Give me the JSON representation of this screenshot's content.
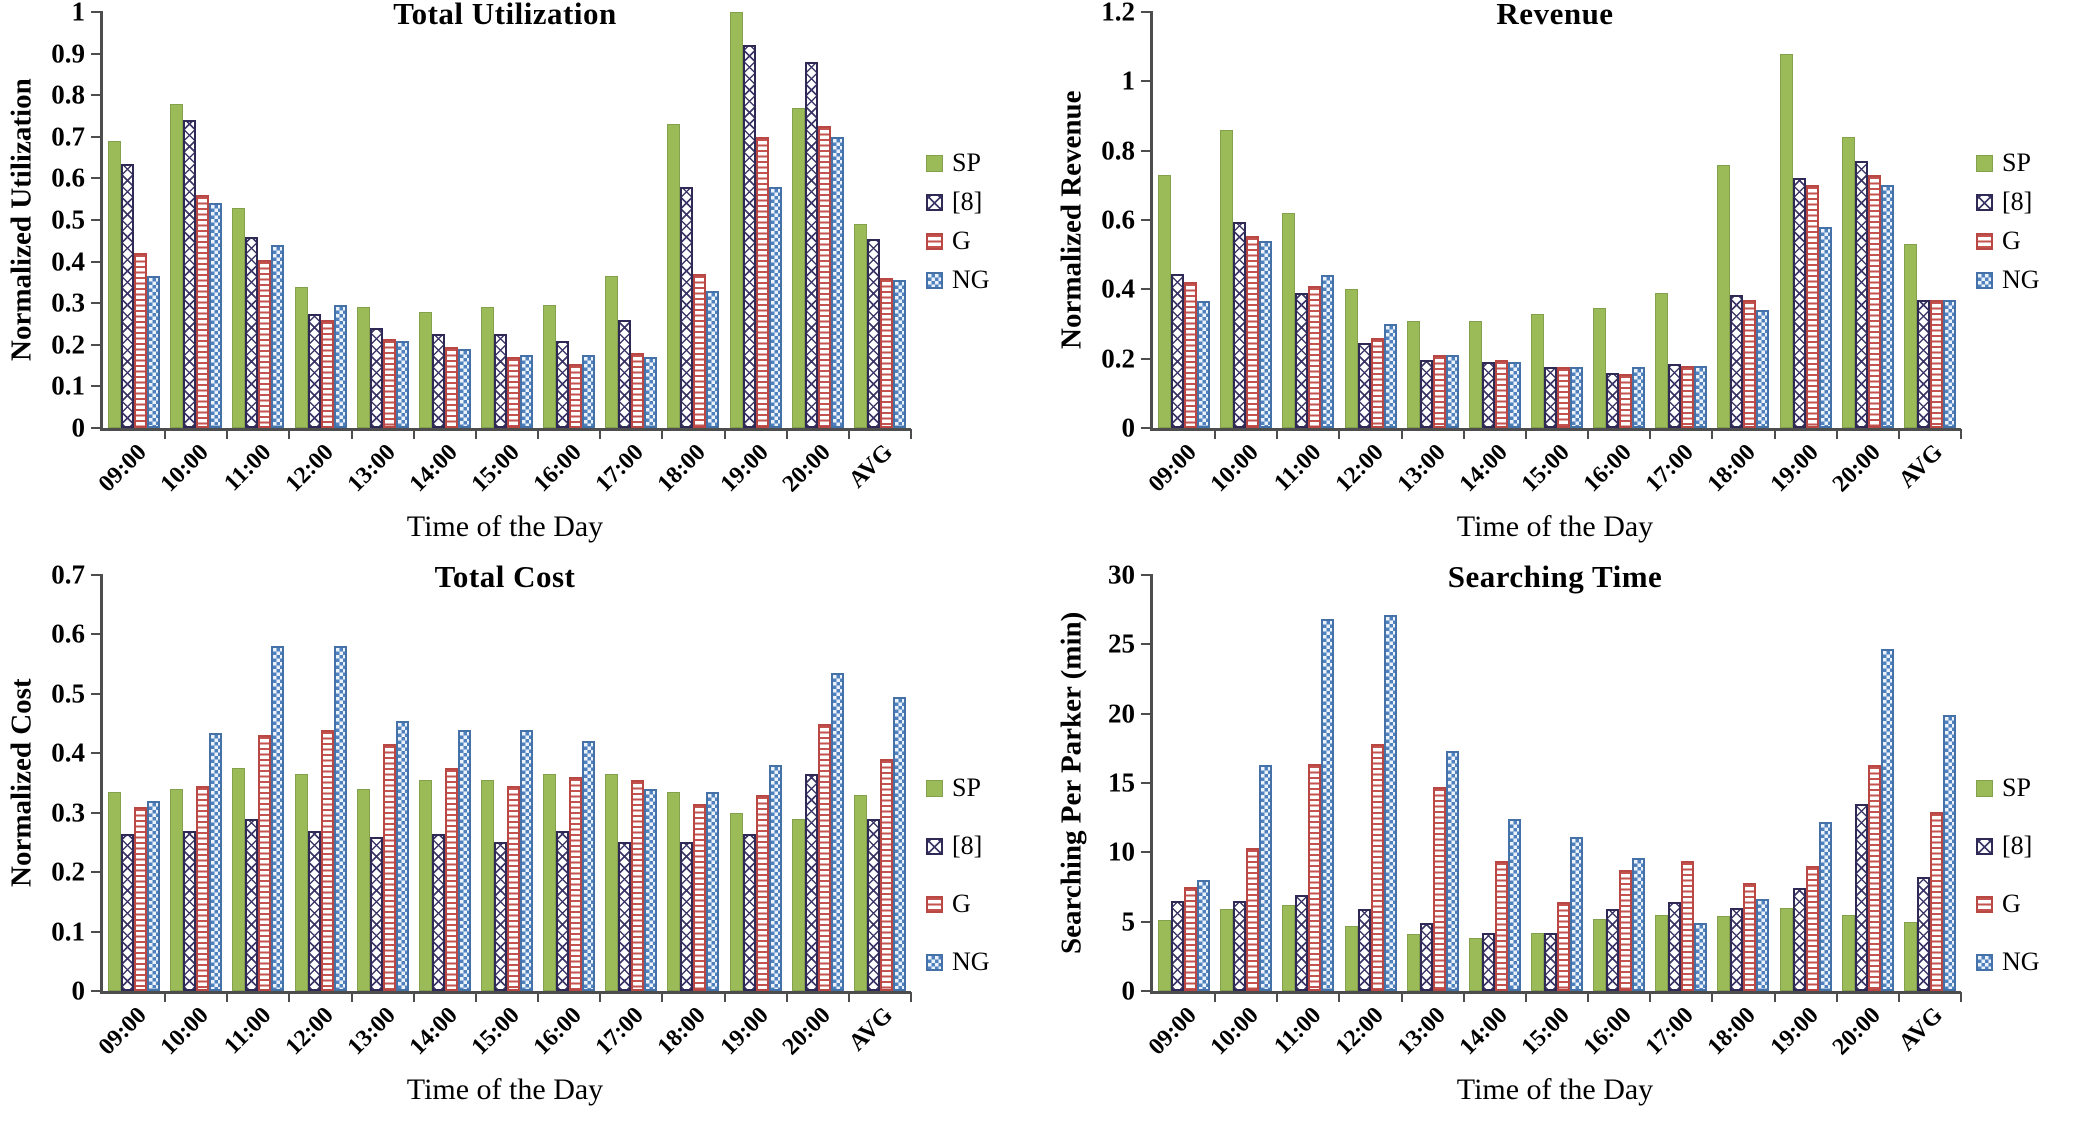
{
  "page": {
    "background": "#ffffff"
  },
  "palette": {
    "axis": "#4d4d4d",
    "sp_fill": "#9BBB59",
    "sp_border": "#83A14C",
    "ref8_pattern": "#3B3668",
    "ref8_border": "#2E2A55",
    "g_pattern": "#C4524E",
    "g_border": "#B94743",
    "ng_pattern": "#4E81BD",
    "ng_border": "#4472A8",
    "ng_fill": "#EDF3FA"
  },
  "chart_data": [
    {
      "type": "bar",
      "title": "Total Utilization",
      "ylabel": "Normalized Utilization",
      "xlabel": "Time  of the Day",
      "ymax": 1.0,
      "ylim": [
        0,
        1.0
      ],
      "grid": false,
      "legend_position": "right",
      "yticks": [
        {
          "label": "1",
          "value": 1.0
        },
        {
          "label": "0.9",
          "value": 0.9
        },
        {
          "label": "0.8",
          "value": 0.8
        },
        {
          "label": "0.7",
          "value": 0.7
        },
        {
          "label": "0.6",
          "value": 0.6
        },
        {
          "label": "0.5",
          "value": 0.5
        },
        {
          "label": "0.4",
          "value": 0.4
        },
        {
          "label": "0.3",
          "value": 0.3
        },
        {
          "label": "0.2",
          "value": 0.2
        },
        {
          "label": "0.1",
          "value": 0.1
        },
        {
          "label": "0",
          "value": 0
        }
      ],
      "categories": [
        "09:00",
        "10:00",
        "11:00",
        "12:00",
        "13:00",
        "14:00",
        "15:00",
        "16:00",
        "17:00",
        "18:00",
        "19:00",
        "20:00",
        "AVG"
      ],
      "series": [
        {
          "name": "SP",
          "swatch": "sp",
          "values": [
            0.69,
            0.78,
            0.53,
            0.34,
            0.29,
            0.28,
            0.29,
            0.295,
            0.365,
            0.73,
            1.0,
            0.77,
            0.49
          ]
        },
        {
          "name": "[8]",
          "swatch": "ref8",
          "values": [
            0.635,
            0.74,
            0.46,
            0.275,
            0.24,
            0.225,
            0.225,
            0.21,
            0.26,
            0.58,
            0.92,
            0.88,
            0.455
          ]
        },
        {
          "name": "G",
          "swatch": "g",
          "values": [
            0.42,
            0.56,
            0.405,
            0.26,
            0.215,
            0.195,
            0.17,
            0.155,
            0.18,
            0.37,
            0.7,
            0.725,
            0.36
          ]
        },
        {
          "name": "NG",
          "swatch": "ng",
          "values": [
            0.365,
            0.54,
            0.44,
            0.295,
            0.21,
            0.19,
            0.175,
            0.175,
            0.17,
            0.33,
            0.58,
            0.7,
            0.355
          ]
        }
      ]
    },
    {
      "type": "bar",
      "title": "Revenue",
      "ylabel": "Normalized Revenue",
      "xlabel": "Time  of the Day",
      "ymax": 1.2,
      "ylim": [
        0,
        1.2
      ],
      "grid": false,
      "legend_position": "right",
      "yticks": [
        {
          "label": "1.2",
          "value": 1.2
        },
        {
          "label": "1",
          "value": 1.0
        },
        {
          "label": "0.8",
          "value": 0.8
        },
        {
          "label": "0.6",
          "value": 0.6
        },
        {
          "label": "0.4",
          "value": 0.4
        },
        {
          "label": "0.2",
          "value": 0.2
        },
        {
          "label": "0",
          "value": 0
        }
      ],
      "categories": [
        "09:00",
        "10:00",
        "11:00",
        "12:00",
        "13:00",
        "14:00",
        "15:00",
        "16:00",
        "17:00",
        "18:00",
        "19:00",
        "20:00",
        "AVG"
      ],
      "series": [
        {
          "name": "SP",
          "swatch": "sp",
          "values": [
            0.73,
            0.86,
            0.62,
            0.4,
            0.31,
            0.31,
            0.33,
            0.345,
            0.39,
            0.76,
            1.08,
            0.84,
            0.53
          ]
        },
        {
          "name": "[8]",
          "swatch": "ref8",
          "values": [
            0.445,
            0.595,
            0.39,
            0.245,
            0.195,
            0.19,
            0.175,
            0.16,
            0.185,
            0.385,
            0.72,
            0.77,
            0.37
          ]
        },
        {
          "name": "G",
          "swatch": "g",
          "values": [
            0.42,
            0.555,
            0.41,
            0.26,
            0.21,
            0.195,
            0.175,
            0.155,
            0.18,
            0.37,
            0.7,
            0.73,
            0.37
          ]
        },
        {
          "name": "NG",
          "swatch": "ng",
          "values": [
            0.365,
            0.54,
            0.44,
            0.3,
            0.21,
            0.19,
            0.175,
            0.175,
            0.18,
            0.34,
            0.58,
            0.7,
            0.37
          ]
        }
      ]
    },
    {
      "type": "bar",
      "title": "Total Cost",
      "ylabel": "Normalized  Cost",
      "xlabel": "Time  of the Day",
      "ymax": 0.7,
      "ylim": [
        0,
        0.7
      ],
      "grid": false,
      "legend_position": "right",
      "yticks": [
        {
          "label": "0.7",
          "value": 0.7
        },
        {
          "label": "0.6",
          "value": 0.6
        },
        {
          "label": "0.5",
          "value": 0.5
        },
        {
          "label": "0.4",
          "value": 0.4
        },
        {
          "label": "0.3",
          "value": 0.3
        },
        {
          "label": "0.2",
          "value": 0.2
        },
        {
          "label": "0.1",
          "value": 0.1
        },
        {
          "label": "0",
          "value": 0
        }
      ],
      "categories": [
        "09:00",
        "10:00",
        "11:00",
        "12:00",
        "13:00",
        "14:00",
        "15:00",
        "16:00",
        "17:00",
        "18:00",
        "19:00",
        "20:00",
        "AVG"
      ],
      "series": [
        {
          "name": "SP",
          "swatch": "sp",
          "values": [
            0.335,
            0.34,
            0.375,
            0.365,
            0.34,
            0.355,
            0.355,
            0.365,
            0.365,
            0.335,
            0.3,
            0.29,
            0.33
          ]
        },
        {
          "name": "[8]",
          "swatch": "ref8",
          "values": [
            0.265,
            0.27,
            0.29,
            0.27,
            0.26,
            0.265,
            0.25,
            0.27,
            0.25,
            0.25,
            0.265,
            0.365,
            0.29
          ]
        },
        {
          "name": "G",
          "swatch": "g",
          "values": [
            0.31,
            0.345,
            0.43,
            0.44,
            0.415,
            0.375,
            0.345,
            0.36,
            0.355,
            0.315,
            0.33,
            0.45,
            0.39
          ]
        },
        {
          "name": "NG",
          "swatch": "ng",
          "values": [
            0.32,
            0.435,
            0.58,
            0.58,
            0.455,
            0.44,
            0.44,
            0.42,
            0.34,
            0.335,
            0.38,
            0.535,
            0.495
          ]
        }
      ]
    },
    {
      "type": "bar",
      "title": "Searching Time",
      "ylabel": "Searching  Per  Parker  (min)",
      "xlabel": "Time  of the Day",
      "ymax": 30,
      "ylim": [
        0,
        30
      ],
      "grid": false,
      "legend_position": "right",
      "yticks": [
        {
          "label": "30",
          "value": 30
        },
        {
          "label": "25",
          "value": 25
        },
        {
          "label": "20",
          "value": 20
        },
        {
          "label": "15",
          "value": 15
        },
        {
          "label": "10",
          "value": 10
        },
        {
          "label": "5",
          "value": 5
        },
        {
          "label": "0",
          "value": 0
        }
      ],
      "categories": [
        "09:00",
        "10:00",
        "11:00",
        "12:00",
        "13:00",
        "14:00",
        "15:00",
        "16:00",
        "17:00",
        "18:00",
        "19:00",
        "20:00",
        "AVG"
      ],
      "series": [
        {
          "name": "SP",
          "swatch": "sp",
          "values": [
            5.1,
            5.9,
            6.2,
            4.7,
            4.1,
            3.8,
            4.2,
            5.2,
            5.5,
            5.4,
            6.0,
            5.5,
            5.0
          ]
        },
        {
          "name": "[8]",
          "swatch": "ref8",
          "values": [
            6.5,
            6.5,
            6.9,
            5.9,
            4.9,
            4.2,
            4.2,
            5.9,
            6.4,
            6.0,
            7.4,
            13.5,
            8.2
          ]
        },
        {
          "name": "G",
          "swatch": "g",
          "values": [
            7.5,
            10.3,
            16.4,
            17.8,
            14.7,
            9.4,
            6.4,
            8.7,
            9.4,
            7.8,
            9.0,
            16.3,
            12.9
          ]
        },
        {
          "name": "NG",
          "swatch": "ng",
          "values": [
            8.0,
            16.3,
            26.8,
            27.1,
            17.3,
            12.4,
            11.1,
            9.6,
            4.9,
            6.6,
            12.2,
            24.7,
            19.9
          ]
        }
      ]
    }
  ]
}
